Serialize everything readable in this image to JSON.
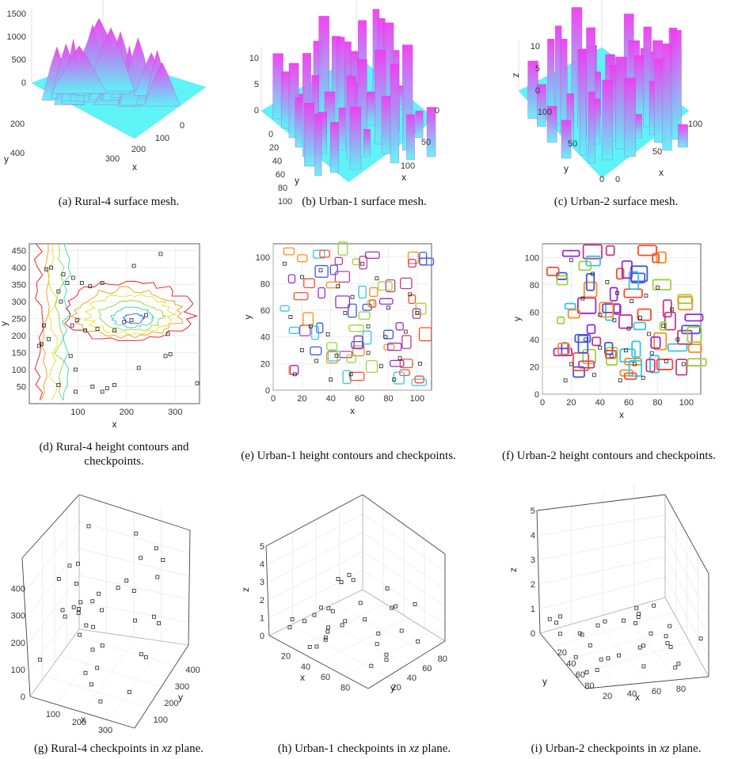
{
  "captions": {
    "a": "(a) Rural-4 surface mesh.",
    "b": "(b) Urban-1 surface mesh.",
    "c": "(c) Urban-2 surface mesh.",
    "d": "(d) Rural-4 height contours and checkpoints.",
    "e": "(e) Urban-1 height contours and checkpoints.",
    "f": "(f) Urban-2 height contours and checkpoints.",
    "g_pre": "(g) Rural-4 checkpoints in ",
    "h_pre": "(h) Urban-1 checkpoints in ",
    "i_pre": "(i) Urban-2 checkpoints in ",
    "plane": "xz",
    "plane_suffix": " plane."
  },
  "colors": {
    "mesh_low": "#5ef3f7",
    "mesh_high": "#f23cf2",
    "contour_palette": [
      "#e8101b",
      "#f39a1a",
      "#e9e21c",
      "#8fd43a",
      "#2ed3c3",
      "#2f62e8",
      "#8a2be2"
    ],
    "urban_palette": [
      "#ff4a2a",
      "#ff8c1a",
      "#9ad33a",
      "#2fc7e8",
      "#3a57e8",
      "#9b2bd1",
      "#c23a8a"
    ],
    "checkpoint": "#222222"
  },
  "chart_data": [
    {
      "id": "a",
      "type": "surface",
      "title": "",
      "xlabel": "x",
      "ylabel": "y",
      "zlabel": "",
      "z_ticks": [
        "0",
        "500",
        "1000",
        "1500"
      ],
      "x_ticks": [
        "0",
        "100",
        "200",
        "300"
      ],
      "y_ticks": [
        "200",
        "400"
      ]
    },
    {
      "id": "b",
      "type": "surface",
      "title": "",
      "xlabel": "x",
      "ylabel": "y",
      "zlabel": "",
      "z_ticks": [
        "0",
        "5",
        "10"
      ],
      "x_ticks": [
        "0",
        "50",
        "100"
      ],
      "y_ticks": [
        "0",
        "20",
        "40",
        "60",
        "80",
        "100"
      ]
    },
    {
      "id": "c",
      "type": "surface",
      "title": "",
      "xlabel": "x",
      "ylabel": "y",
      "zlabel": "z",
      "z_ticks": [
        "0",
        "5",
        "10"
      ],
      "x_ticks": [
        "0",
        "50",
        "100"
      ],
      "y_ticks": [
        "0",
        "50",
        "100"
      ]
    },
    {
      "id": "d",
      "type": "contour",
      "xlabel": "x",
      "ylabel": "y",
      "xlim": [
        0,
        350
      ],
      "ylim": [
        0,
        470
      ],
      "x_ticks": [
        100,
        200,
        300
      ],
      "y_ticks": [
        50,
        100,
        150,
        200,
        250,
        300,
        350,
        400,
        450
      ],
      "checkpoints": [
        [
          25,
          175
        ],
        [
          35,
          395
        ],
        [
          45,
          400
        ],
        [
          60,
          330
        ],
        [
          70,
          380
        ],
        [
          78,
          355
        ],
        [
          90,
          370
        ],
        [
          108,
          355
        ],
        [
          125,
          345
        ],
        [
          150,
          355
        ],
        [
          270,
          440
        ],
        [
          215,
          405
        ],
        [
          30,
          230
        ],
        [
          65,
          300
        ],
        [
          88,
          230
        ],
        [
          98,
          245
        ],
        [
          115,
          215
        ],
        [
          140,
          220
        ],
        [
          175,
          215
        ],
        [
          195,
          240
        ],
        [
          210,
          245
        ],
        [
          240,
          260
        ],
        [
          285,
          205
        ],
        [
          290,
          145
        ],
        [
          280,
          140
        ],
        [
          225,
          105
        ],
        [
          175,
          55
        ],
        [
          160,
          45
        ],
        [
          150,
          35
        ],
        [
          130,
          50
        ],
        [
          95,
          35
        ],
        [
          60,
          55
        ],
        [
          85,
          140
        ],
        [
          95,
          100
        ],
        [
          345,
          60
        ],
        [
          20,
          170
        ],
        [
          40,
          190
        ]
      ]
    },
    {
      "id": "e",
      "type": "contour",
      "xlabel": "x",
      "ylabel": "y",
      "xlim": [
        0,
        110
      ],
      "ylim": [
        0,
        110
      ],
      "x_ticks": [
        0,
        20,
        40,
        60,
        80,
        100
      ],
      "y_ticks": [
        0,
        20,
        40,
        60,
        80,
        100
      ],
      "checkpoints": [
        [
          8,
          95
        ],
        [
          20,
          85
        ],
        [
          33,
          90
        ],
        [
          45,
          78
        ],
        [
          55,
          70
        ],
        [
          62,
          95
        ],
        [
          72,
          84
        ],
        [
          80,
          62
        ],
        [
          95,
          72
        ],
        [
          100,
          58
        ],
        [
          12,
          55
        ],
        [
          26,
          48
        ],
        [
          38,
          42
        ],
        [
          50,
          58
        ],
        [
          66,
          48
        ],
        [
          78,
          40
        ],
        [
          92,
          44
        ],
        [
          20,
          30
        ],
        [
          30,
          22
        ],
        [
          44,
          26
        ],
        [
          54,
          12
        ],
        [
          66,
          28
        ],
        [
          75,
          18
        ],
        [
          88,
          24
        ],
        [
          102,
          20
        ],
        [
          15,
          12
        ],
        [
          40,
          8
        ],
        [
          84,
          8
        ]
      ]
    },
    {
      "id": "f",
      "type": "contour",
      "xlabel": "x",
      "ylabel": "y",
      "xlim": [
        0,
        110
      ],
      "ylim": [
        0,
        110
      ],
      "x_ticks": [
        0,
        20,
        40,
        60,
        80,
        100
      ],
      "y_ticks": [
        0,
        20,
        40,
        60,
        80,
        100
      ],
      "checkpoints": [
        [
          20,
          98
        ],
        [
          35,
          88
        ],
        [
          45,
          82
        ],
        [
          52,
          74
        ],
        [
          62,
          68
        ],
        [
          72,
          72
        ],
        [
          80,
          78
        ],
        [
          90,
          62
        ],
        [
          28,
          70
        ],
        [
          40,
          58
        ],
        [
          50,
          54
        ],
        [
          60,
          48
        ],
        [
          68,
          56
        ],
        [
          74,
          44
        ],
        [
          84,
          50
        ],
        [
          94,
          40
        ],
        [
          30,
          40
        ],
        [
          40,
          34
        ],
        [
          48,
          28
        ],
        [
          58,
          32
        ],
        [
          64,
          22
        ],
        [
          76,
          30
        ],
        [
          86,
          24
        ],
        [
          98,
          22
        ],
        [
          20,
          22
        ],
        [
          36,
          14
        ],
        [
          54,
          10
        ],
        [
          70,
          12
        ],
        [
          16,
          10
        ]
      ]
    },
    {
      "id": "g",
      "type": "scatter3d",
      "xlabel": "x",
      "ylabel": "y",
      "zlabel": "",
      "z_ticks": [
        "0",
        "100",
        "200",
        "300",
        "400"
      ],
      "x_ticks": [
        "100",
        "200",
        "300"
      ],
      "y_ticks": [
        "100",
        "200",
        "300",
        "400"
      ]
    },
    {
      "id": "h",
      "type": "scatter3d",
      "xlabel": "x",
      "ylabel": "y",
      "zlabel": "z",
      "z_ticks": [
        "0",
        "1",
        "2",
        "3",
        "4",
        "5"
      ],
      "x_ticks": [
        "20",
        "40",
        "60",
        "80"
      ],
      "y_ticks": [
        "20",
        "40",
        "60",
        "80"
      ]
    },
    {
      "id": "i",
      "type": "scatter3d",
      "xlabel": "x",
      "ylabel": "y",
      "zlabel": "z",
      "z_ticks": [
        "0",
        "1",
        "2",
        "3",
        "4",
        "5"
      ],
      "x_ticks": [
        "20",
        "40",
        "60",
        "80"
      ],
      "y_ticks": [
        "20",
        "40",
        "60",
        "80"
      ]
    }
  ]
}
